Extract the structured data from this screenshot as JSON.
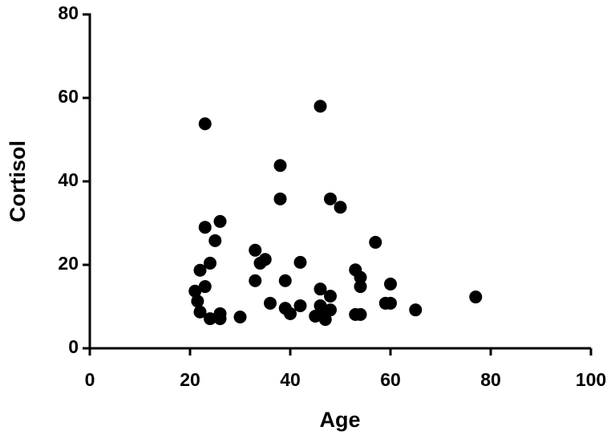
{
  "chart_data": {
    "type": "scatter",
    "x_label": "Age",
    "y_label": "Cortisol",
    "color": "#000000",
    "xlim": [
      0,
      100
    ],
    "xticks": [
      0,
      20,
      40,
      60,
      80,
      100
    ],
    "ylim": [
      0,
      80
    ],
    "yticks": [
      0,
      20,
      40,
      60,
      80
    ],
    "x": [
      23,
      46,
      38,
      38,
      48,
      50,
      26,
      23,
      25,
      57,
      33,
      35,
      34,
      24,
      42,
      22,
      53,
      54,
      33,
      39,
      60,
      23,
      54,
      46,
      21,
      48,
      77,
      21.5,
      36,
      59,
      60,
      65,
      46,
      42,
      39,
      48,
      22,
      26,
      40,
      47,
      53,
      54,
      45,
      30,
      24,
      26,
      47
    ],
    "values": [
      53.8,
      58,
      43.8,
      35.8,
      35.8,
      33.8,
      30.4,
      29,
      25.8,
      25.4,
      23.5,
      21.3,
      20.4,
      20.4,
      20.6,
      18.7,
      18.8,
      17,
      16.2,
      16.2,
      15.4,
      14.8,
      14.8,
      14.2,
      13.7,
      12.5,
      12.3,
      11.3,
      10.8,
      10.8,
      10.8,
      9.2,
      10.2,
      10.2,
      9.6,
      9.2,
      8.7,
      8.3,
      8.3,
      8.7,
      8.1,
      8.1,
      7.7,
      7.5,
      7.1,
      7.1,
      6.9
    ]
  }
}
